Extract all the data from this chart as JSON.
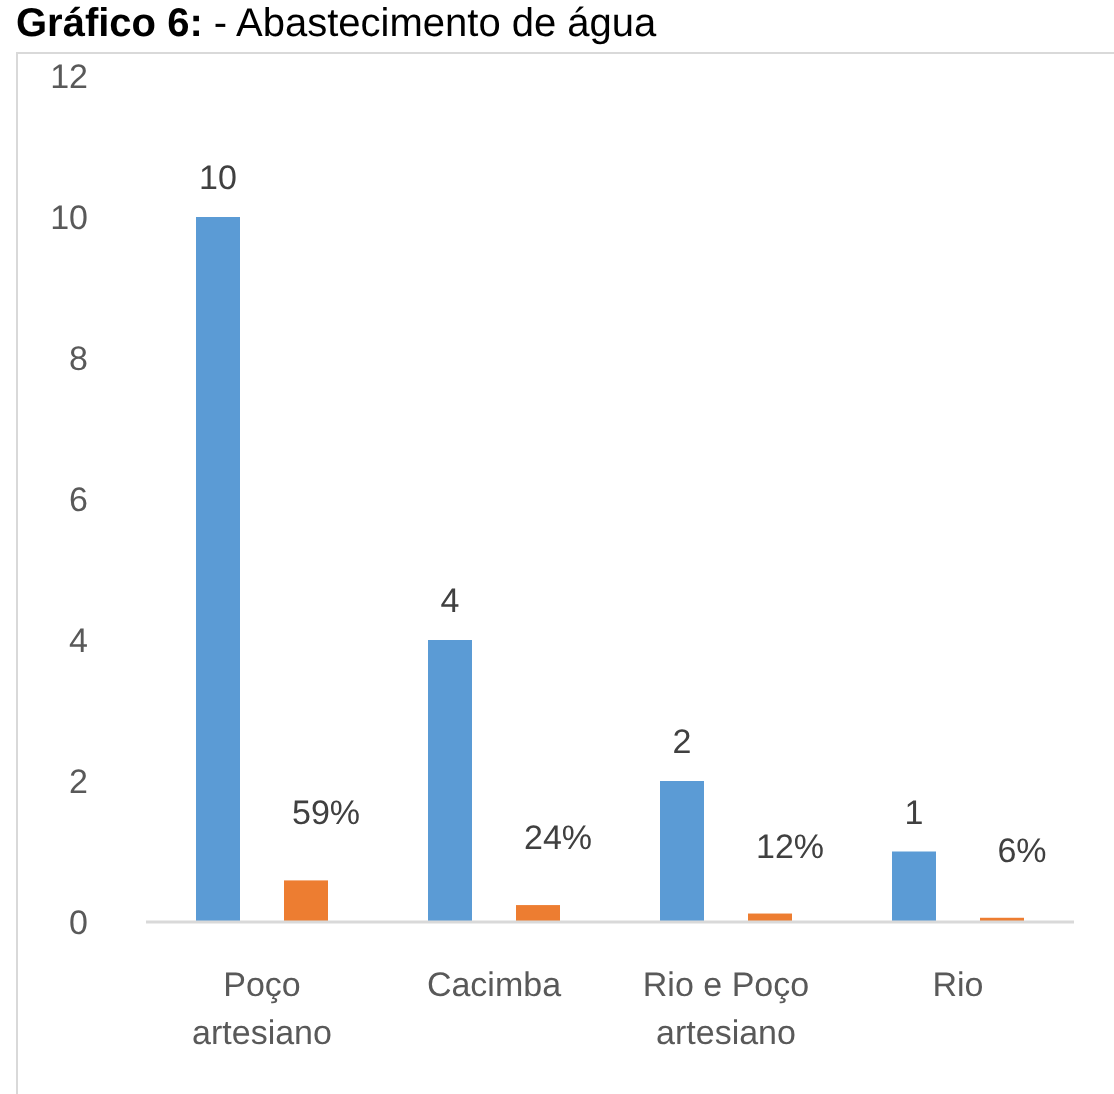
{
  "chart_data": {
    "type": "bar",
    "title": "Gráfico 6: - Abastecimento de água",
    "categories": [
      "Poço artesiano",
      "Cacimba",
      "Rio e Poço artesiano",
      "Rio"
    ],
    "series": [
      {
        "color": "#5b9bd5",
        "values": [
          10,
          4,
          2,
          1
        ],
        "value_labels": [
          "10",
          "4",
          "2",
          "1"
        ]
      },
      {
        "color": "#ed7d31",
        "values": [
          0.59,
          0.24,
          0.12,
          0.06
        ],
        "value_labels": [
          "59%",
          "24%",
          "12%",
          "6%"
        ]
      }
    ],
    "ylim": [
      0,
      12
    ],
    "yticks": [
      0,
      2,
      4,
      6,
      8,
      10,
      12
    ]
  }
}
